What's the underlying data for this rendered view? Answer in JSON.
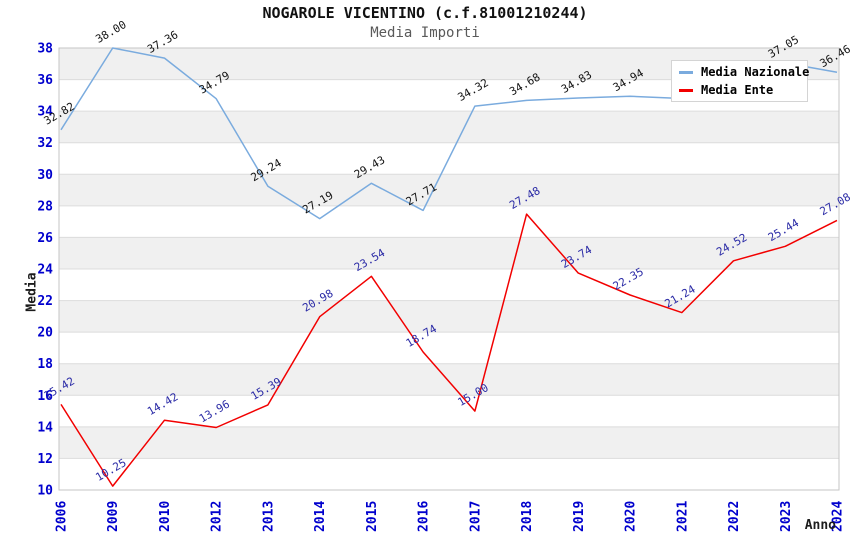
{
  "title": "NOGAROLE VICENTINO (c.f.81001210244)",
  "subtitle": "Media Importi",
  "axes": {
    "x_title": "Anno",
    "y_title": "Media",
    "y_min": 10,
    "y_max": 38,
    "y_step": 2,
    "tick_color": "#0000cd"
  },
  "legend": {
    "position": "top-right",
    "items": [
      {
        "label": "Media Nazionale",
        "color": "#7aabde"
      },
      {
        "label": "Media Ente",
        "color": "#f20000"
      }
    ]
  },
  "chart_data": {
    "type": "line",
    "title": "NOGAROLE VICENTINO (c.f.81001210244)",
    "subtitle": "Media Importi",
    "xlabel": "Anno",
    "ylabel": "Media",
    "ylim": [
      10,
      38
    ],
    "grid": "horizontal-bands-alternating",
    "legend_position": "top-right",
    "categories": [
      "2006",
      "2009",
      "2010",
      "2012",
      "2013",
      "2014",
      "2015",
      "2016",
      "2017",
      "2018",
      "2019",
      "2020",
      "2021",
      "2022",
      "2023",
      "2024"
    ],
    "series": [
      {
        "name": "Media Nazionale",
        "color": "#7aabde",
        "label_color": "#141414",
        "values": [
          32.82,
          38.0,
          37.36,
          34.79,
          29.24,
          27.19,
          29.43,
          27.71,
          34.32,
          34.68,
          34.83,
          34.94,
          34.8,
          35.9,
          37.05,
          36.46
        ],
        "labels": [
          "32.82",
          "38.00",
          "37.36",
          "34.79",
          "29.24",
          "27.19",
          "29.43",
          "27.71",
          "34.32",
          "34.68",
          "34.83",
          "34.94",
          null,
          null,
          "37.05",
          "36.46"
        ]
      },
      {
        "name": "Media Ente",
        "color": "#f20000",
        "label_color": "#2b2ba6",
        "values": [
          15.42,
          10.25,
          14.42,
          13.96,
          15.39,
          20.98,
          23.54,
          18.74,
          15.0,
          27.48,
          23.74,
          22.35,
          21.24,
          24.52,
          25.44,
          27.08
        ],
        "labels": [
          "15.42",
          "10.25",
          "14.42",
          "13.96",
          "15.39",
          "20.98",
          "23.54",
          "18.74",
          "15.00",
          "27.48",
          "23.74",
          "22.35",
          "21.24",
          "24.52",
          "25.44",
          "27.08"
        ]
      }
    ]
  },
  "style": {
    "band_gray": "#f0f0f0",
    "band_white": "#ffffff",
    "gridline": "#dcdcdc",
    "plot_border": "#c6c6c6",
    "title_color": "#111111",
    "subtitle_color": "#5a5a5a"
  }
}
